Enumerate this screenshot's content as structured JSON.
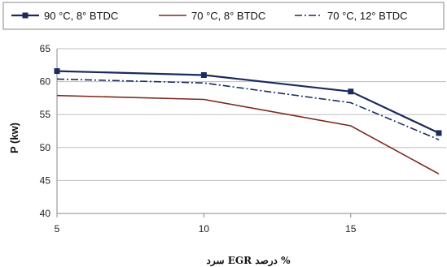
{
  "chart_data": {
    "type": "line",
    "x": [
      5,
      10,
      15,
      18
    ],
    "xticks": [
      5,
      10,
      15
    ],
    "ylim": [
      40,
      65
    ],
    "yticks": [
      40,
      45,
      50,
      55,
      60,
      65
    ],
    "xlabel": "% درصد EGR سرد",
    "ylabel": "P (kw)",
    "grid": "horizontal",
    "legend_position": "top",
    "series": [
      {
        "name": "90 °C, 8° BTDC",
        "values": [
          61.6,
          61.0,
          58.5,
          52.2
        ],
        "color": "#1a2c5c",
        "dash": "solid",
        "marker": "square"
      },
      {
        "name": "70 °C, 8° BTDC",
        "values": [
          57.9,
          57.3,
          53.3,
          46.0
        ],
        "color": "#7a2a1e",
        "dash": "solid",
        "marker": "none"
      },
      {
        "name": "70 °C, 12° BTDC",
        "values": [
          60.4,
          59.8,
          56.8,
          51.2
        ],
        "color": "#1a2c5c",
        "dash": "dashdot",
        "marker": "none"
      }
    ]
  }
}
